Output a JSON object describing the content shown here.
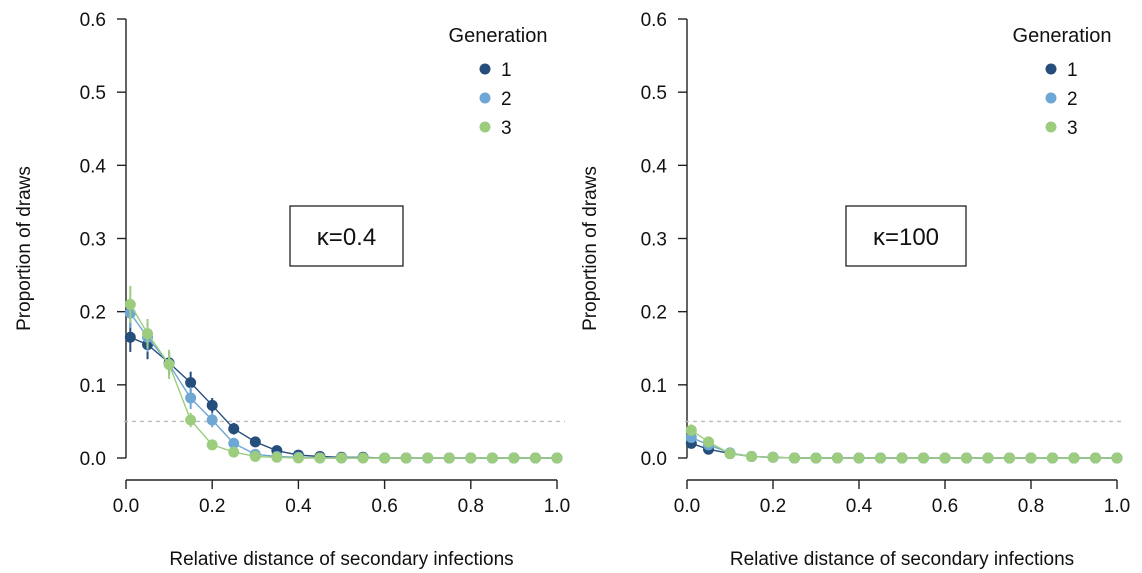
{
  "chart_data": [
    {
      "type": "line",
      "annotation": "κ=0.4",
      "xlabel": "Relative distance of secondary infections",
      "ylabel": "Proportion of draws",
      "xlim": [
        0,
        1.0
      ],
      "ylim": [
        0,
        0.6
      ],
      "xticks": [
        "0.0",
        "0.2",
        "0.4",
        "0.6",
        "0.8",
        "1.0"
      ],
      "yticks": [
        "0.0",
        "0.1",
        "0.2",
        "0.3",
        "0.4",
        "0.5",
        "0.6"
      ],
      "reference_line": 0.05,
      "legend": {
        "title": "Generation",
        "position": "top-right"
      },
      "x": [
        0.01,
        0.05,
        0.1,
        0.15,
        0.2,
        0.25,
        0.3,
        0.35,
        0.4,
        0.45,
        0.5,
        0.55,
        0.6,
        0.65,
        0.7,
        0.75,
        0.8,
        0.85,
        0.9,
        0.95,
        1.0
      ],
      "series": [
        {
          "name": "1",
          "color": "#264e7d",
          "values": [
            0.165,
            0.155,
            0.13,
            0.103,
            0.072,
            0.04,
            0.022,
            0.01,
            0.004,
            0.002,
            0.001,
            0.001,
            0,
            0,
            0,
            0,
            0,
            0,
            0,
            0,
            0
          ],
          "errors": [
            0.02,
            0.02,
            0.015,
            0.015,
            0.01,
            0.008,
            0.006,
            0.004,
            0.002,
            0.001,
            0.001,
            0,
            0,
            0,
            0,
            0,
            0,
            0,
            0,
            0,
            0
          ]
        },
        {
          "name": "2",
          "color": "#6ea6d4",
          "values": [
            0.198,
            0.165,
            0.128,
            0.082,
            0.052,
            0.02,
            0.005,
            0.002,
            0.001,
            0,
            0,
            0,
            0,
            0,
            0,
            0,
            0,
            0,
            0,
            0,
            0
          ],
          "errors": [
            0.02,
            0.02,
            0.015,
            0.015,
            0.01,
            0.006,
            0.003,
            0.002,
            0.001,
            0,
            0,
            0,
            0,
            0,
            0,
            0,
            0,
            0,
            0,
            0,
            0
          ]
        },
        {
          "name": "3",
          "color": "#9ccd7e",
          "values": [
            0.21,
            0.17,
            0.128,
            0.052,
            0.018,
            0.008,
            0.002,
            0.001,
            0,
            0,
            0,
            0,
            0,
            0,
            0,
            0,
            0,
            0,
            0,
            0,
            0
          ],
          "errors": [
            0.025,
            0.02,
            0.02,
            0.01,
            0.006,
            0.003,
            0.001,
            0,
            0,
            0,
            0,
            0,
            0,
            0,
            0,
            0,
            0,
            0,
            0,
            0,
            0
          ]
        }
      ]
    },
    {
      "type": "line",
      "annotation": "κ=100",
      "xlabel": "Relative distance of secondary infections",
      "ylabel": "Proportion of draws",
      "xlim": [
        0,
        1.0
      ],
      "ylim": [
        0,
        0.6
      ],
      "xticks": [
        "0.0",
        "0.2",
        "0.4",
        "0.6",
        "0.8",
        "1.0"
      ],
      "yticks": [
        "0.0",
        "0.1",
        "0.2",
        "0.3",
        "0.4",
        "0.5",
        "0.6"
      ],
      "reference_line": 0.05,
      "legend": {
        "title": "Generation",
        "position": "top-right"
      },
      "x": [
        0.01,
        0.05,
        0.1,
        0.15,
        0.2,
        0.25,
        0.3,
        0.35,
        0.4,
        0.45,
        0.5,
        0.55,
        0.6,
        0.65,
        0.7,
        0.75,
        0.8,
        0.85,
        0.9,
        0.95,
        1.0
      ],
      "series": [
        {
          "name": "1",
          "color": "#264e7d",
          "values": [
            0.02,
            0.012,
            0.006,
            0.002,
            0.001,
            0,
            0,
            0,
            0,
            0,
            0,
            0,
            0,
            0,
            0,
            0,
            0,
            0,
            0,
            0,
            0
          ],
          "errors": [
            0.005,
            0.004,
            0.002,
            0.001,
            0,
            0,
            0,
            0,
            0,
            0,
            0,
            0,
            0,
            0,
            0,
            0,
            0,
            0,
            0,
            0,
            0
          ]
        },
        {
          "name": "2",
          "color": "#6ea6d4",
          "values": [
            0.028,
            0.018,
            0.007,
            0.002,
            0.001,
            0,
            0,
            0,
            0,
            0,
            0,
            0,
            0,
            0,
            0,
            0,
            0,
            0,
            0,
            0,
            0
          ],
          "errors": [
            0.006,
            0.004,
            0.002,
            0.001,
            0,
            0,
            0,
            0,
            0,
            0,
            0,
            0,
            0,
            0,
            0,
            0,
            0,
            0,
            0,
            0,
            0
          ]
        },
        {
          "name": "3",
          "color": "#9ccd7e",
          "values": [
            0.038,
            0.022,
            0.006,
            0.002,
            0.001,
            0,
            0,
            0,
            0,
            0,
            0,
            0,
            0,
            0,
            0,
            0,
            0,
            0,
            0,
            0,
            0
          ],
          "errors": [
            0.008,
            0.004,
            0.002,
            0.001,
            0,
            0,
            0,
            0,
            0,
            0,
            0,
            0,
            0,
            0,
            0,
            0,
            0,
            0,
            0,
            0,
            0
          ]
        }
      ]
    }
  ]
}
